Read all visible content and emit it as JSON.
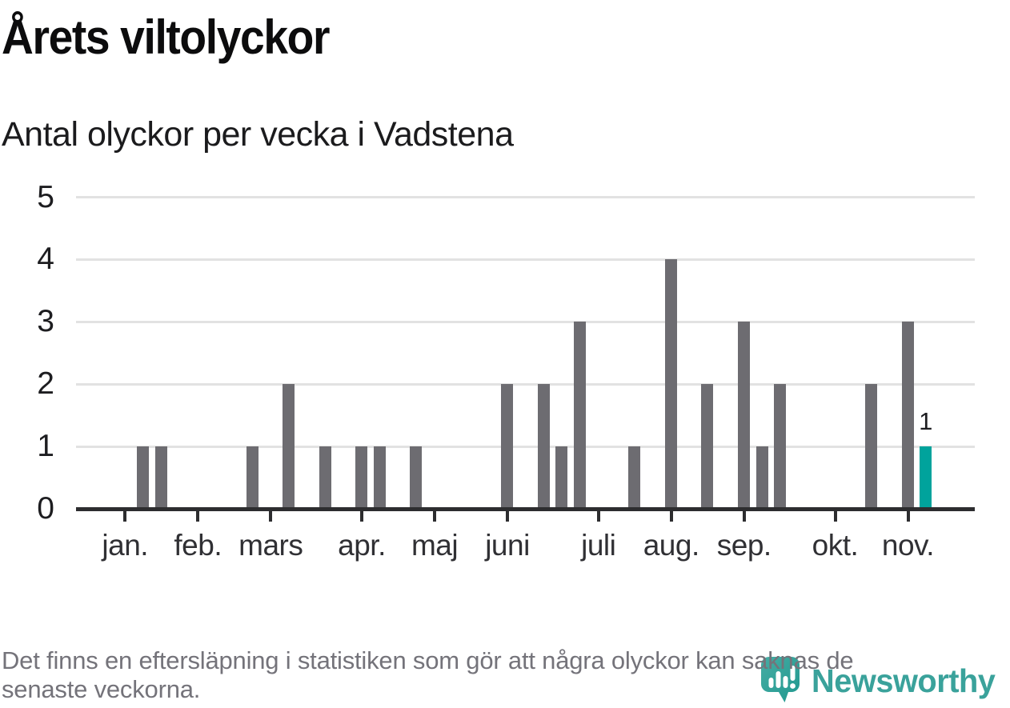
{
  "header": {
    "title": "Årets viltolyckor",
    "subtitle": "Antal olyckor per vecka i Vadstena"
  },
  "chart_data": {
    "type": "bar",
    "title": "Årets viltolyckor",
    "subtitle": "Antal olyckor per vecka i Vadstena",
    "x_unit": "vecka (week of year)",
    "ylabel": "Antal olyckor",
    "ylim": [
      0,
      5
    ],
    "y_ticks": [
      0,
      1,
      2,
      3,
      4,
      5
    ],
    "grid": true,
    "legend": "none",
    "bar_color": "#6d6c71",
    "highlight_color": "#00a39c",
    "bars": [
      {
        "week": 0,
        "value": 1
      },
      {
        "week": 1,
        "value": 1
      },
      {
        "week": 6,
        "value": 1
      },
      {
        "week": 8,
        "value": 2
      },
      {
        "week": 10,
        "value": 1
      },
      {
        "week": 12,
        "value": 1
      },
      {
        "week": 13,
        "value": 1
      },
      {
        "week": 15,
        "value": 1
      },
      {
        "week": 20,
        "value": 2
      },
      {
        "week": 22,
        "value": 2
      },
      {
        "week": 23,
        "value": 1
      },
      {
        "week": 24,
        "value": 3
      },
      {
        "week": 27,
        "value": 1
      },
      {
        "week": 29,
        "value": 4
      },
      {
        "week": 31,
        "value": 2
      },
      {
        "week": 33,
        "value": 3
      },
      {
        "week": 34,
        "value": 1
      },
      {
        "week": 35,
        "value": 2
      },
      {
        "week": 40,
        "value": 2
      },
      {
        "week": 42,
        "value": 3
      },
      {
        "week": 43,
        "value": 1,
        "highlight": true,
        "label": "1"
      }
    ],
    "months": [
      {
        "label": "jan.",
        "first_week": 0
      },
      {
        "label": "feb.",
        "first_week": 4
      },
      {
        "label": "mars",
        "first_week": 8
      },
      {
        "label": "apr.",
        "first_week": 13
      },
      {
        "label": "maj",
        "first_week": 17
      },
      {
        "label": "juni",
        "first_week": 21
      },
      {
        "label": "juli",
        "first_week": 26
      },
      {
        "label": "aug.",
        "first_week": 30
      },
      {
        "label": "sep.",
        "first_week": 34
      },
      {
        "label": "okt.",
        "first_week": 39
      },
      {
        "label": "nov.",
        "first_week": 43
      }
    ]
  },
  "footnote": {
    "lines": [
      "Det finns en eftersläpning i statistiken som gör att några olyckor kan saknas de",
      "senaste veckorna."
    ]
  },
  "logo": {
    "text": "Newsworthy",
    "text_color": "#3aa29b",
    "pin_color_light": "#46ada4",
    "pin_color_dark": "#21988f"
  }
}
